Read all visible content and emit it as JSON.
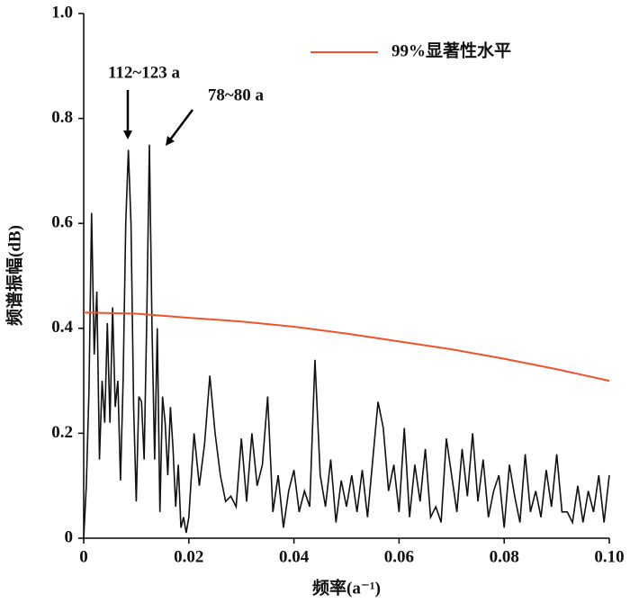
{
  "chart_data": {
    "type": "line",
    "xlabel": "频率(a⁻¹)",
    "ylabel": "频谱振幅(dB)",
    "xlim": [
      0,
      0.1
    ],
    "ylim": [
      0,
      1
    ],
    "xticks": [
      0,
      0.02,
      0.04,
      0.06,
      0.08,
      {
        "value": 0.1,
        "label": "0.10"
      }
    ],
    "yticks": [
      0,
      0.2,
      0.4,
      0.6,
      0.8,
      {
        "value": 1,
        "label": "1.0"
      }
    ],
    "legend": "upper right",
    "annotations": [
      "112~123 a",
      "78~80 a"
    ],
    "series": [
      {
        "color": "#111111",
        "x": [
          0,
          0.0005,
          0.001,
          0.0015,
          0.002,
          0.0025,
          0.003,
          0.0035,
          0.004,
          0.0045,
          0.005,
          0.0055,
          0.006,
          0.0065,
          0.007,
          0.0075,
          0.008,
          0.0085,
          0.009,
          0.0095,
          0.01,
          0.0105,
          0.011,
          0.0115,
          0.012,
          0.0125,
          0.013,
          0.0135,
          0.014,
          0.0145,
          0.015,
          0.0155,
          0.016,
          0.0165,
          0.017,
          0.0175,
          0.018,
          0.0185,
          0.019,
          0.0195,
          0.02,
          0.021,
          0.022,
          0.023,
          0.024,
          0.025,
          0.026,
          0.027,
          0.028,
          0.029,
          0.03,
          0.031,
          0.032,
          0.033,
          0.034,
          0.035,
          0.036,
          0.037,
          0.038,
          0.039,
          0.04,
          0.041,
          0.042,
          0.043,
          0.044,
          0.045,
          0.046,
          0.047,
          0.048,
          0.049,
          0.05,
          0.051,
          0.052,
          0.053,
          0.054,
          0.055,
          0.056,
          0.057,
          0.058,
          0.059,
          0.06,
          0.061,
          0.062,
          0.063,
          0.064,
          0.065,
          0.066,
          0.067,
          0.068,
          0.069,
          0.07,
          0.071,
          0.072,
          0.073,
          0.074,
          0.075,
          0.076,
          0.077,
          0.078,
          0.079,
          0.08,
          0.081,
          0.082,
          0.083,
          0.084,
          0.085,
          0.086,
          0.087,
          0.088,
          0.089,
          0.09,
          0.091,
          0.092,
          0.093,
          0.094,
          0.095,
          0.096,
          0.097,
          0.098,
          0.099,
          0.1
        ],
        "values": [
          0,
          0.1,
          0.28,
          0.62,
          0.35,
          0.47,
          0.15,
          0.3,
          0.22,
          0.41,
          0.22,
          0.44,
          0.25,
          0.3,
          0.11,
          0.3,
          0.6,
          0.74,
          0.6,
          0.25,
          0.07,
          0.27,
          0.26,
          0.15,
          0.42,
          0.75,
          0.4,
          0.15,
          0.4,
          0.05,
          0.27,
          0.22,
          0.12,
          0.25,
          0.17,
          0.06,
          0.14,
          0.02,
          0.04,
          0.01,
          0.04,
          0.2,
          0.1,
          0.18,
          0.31,
          0.2,
          0.12,
          0.07,
          0.08,
          0.06,
          0.19,
          0.07,
          0.2,
          0.1,
          0.14,
          0.27,
          0.05,
          0.12,
          0.02,
          0.09,
          0.13,
          0.05,
          0.09,
          0.06,
          0.34,
          0.12,
          0.06,
          0.15,
          0.03,
          0.11,
          0.06,
          0.12,
          0.05,
          0.13,
          0.04,
          0.15,
          0.26,
          0.21,
          0.09,
          0.14,
          0.05,
          0.21,
          0.04,
          0.14,
          0.07,
          0.17,
          0.04,
          0.06,
          0.03,
          0.19,
          0.12,
          0.05,
          0.17,
          0.08,
          0.2,
          0.07,
          0.15,
          0.04,
          0.09,
          0.12,
          0.02,
          0.14,
          0.08,
          0.03,
          0.16,
          0.05,
          0.09,
          0.04,
          0.13,
          0.06,
          0.16,
          0.05,
          0.05,
          0.03,
          0.1,
          0.03,
          0.09,
          0.05,
          0.12,
          0.03,
          0.12
        ]
      },
      {
        "name": "99%显著性水平",
        "color": "#f0522a",
        "x": [
          0,
          0.01,
          0.02,
          0.03,
          0.04,
          0.05,
          0.06,
          0.07,
          0.08,
          0.09,
          0.1
        ],
        "values": [
          0.43,
          0.428,
          0.42,
          0.413,
          0.403,
          0.39,
          0.375,
          0.36,
          0.342,
          0.322,
          0.3
        ]
      }
    ]
  }
}
